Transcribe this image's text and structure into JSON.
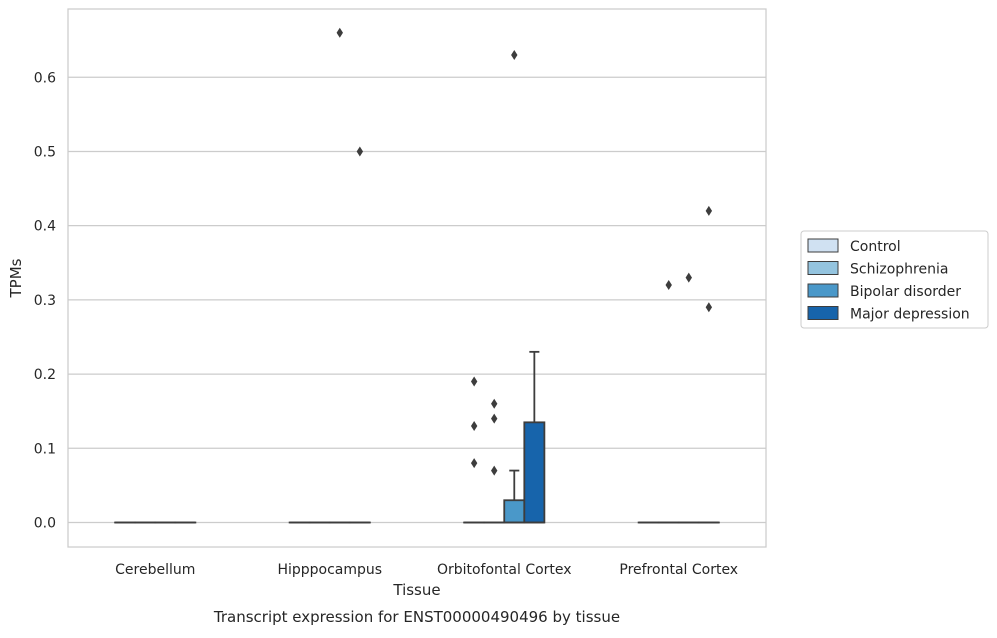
{
  "caption": "Transcript expression for ENST00000490496 by tissue",
  "chart_data": {
    "type": "box",
    "xlabel": "Tissue",
    "ylabel": "TPMs",
    "ylim": [
      -0.033,
      0.692
    ],
    "yticks": [
      0.0,
      0.1,
      0.2,
      0.3,
      0.4,
      0.5,
      0.6
    ],
    "ytick_labels": [
      "0.0",
      "0.1",
      "0.2",
      "0.3",
      "0.4",
      "0.5",
      "0.6"
    ],
    "categories": [
      "Cerebellum",
      "Hipppocampus",
      "Orbitofontal Cortex",
      "Prefrontal Cortex"
    ],
    "grid": "horizontal",
    "legend_position": "right",
    "series": [
      {
        "name": "Control",
        "color": "#d0e1f2",
        "boxes": [
          {
            "q1": 0,
            "median": 0,
            "q3": 0,
            "whisker_low": 0,
            "whisker_high": 0,
            "outliers": []
          },
          {
            "q1": 0,
            "median": 0,
            "q3": 0,
            "whisker_low": 0,
            "whisker_high": 0,
            "outliers": []
          },
          {
            "q1": 0,
            "median": 0,
            "q3": 0,
            "whisker_low": 0,
            "whisker_high": 0,
            "outliers": [
              0.08,
              0.13,
              0.19
            ]
          },
          {
            "q1": 0,
            "median": 0,
            "q3": 0,
            "whisker_low": 0,
            "whisker_high": 0,
            "outliers": []
          }
        ]
      },
      {
        "name": "Schizophrenia",
        "color": "#94c4df",
        "boxes": [
          {
            "q1": 0,
            "median": 0,
            "q3": 0,
            "whisker_low": 0,
            "whisker_high": 0,
            "outliers": []
          },
          {
            "q1": 0,
            "median": 0,
            "q3": 0,
            "whisker_low": 0,
            "whisker_high": 0,
            "outliers": []
          },
          {
            "q1": 0,
            "median": 0,
            "q3": 0,
            "whisker_low": 0,
            "whisker_high": 0,
            "outliers": [
              0.07,
              0.14,
              0.16
            ]
          },
          {
            "q1": 0,
            "median": 0,
            "q3": 0,
            "whisker_low": 0,
            "whisker_high": 0,
            "outliers": [
              0.32
            ]
          }
        ]
      },
      {
        "name": "Bipolar disorder",
        "color": "#4a98c9",
        "boxes": [
          {
            "q1": 0,
            "median": 0,
            "q3": 0,
            "whisker_low": 0,
            "whisker_high": 0,
            "outliers": []
          },
          {
            "q1": 0,
            "median": 0,
            "q3": 0,
            "whisker_low": 0,
            "whisker_high": 0,
            "outliers": [
              0.66
            ]
          },
          {
            "q1": 0,
            "median": 0,
            "q3": 0.03,
            "whisker_low": 0,
            "whisker_high": 0.07,
            "outliers": [
              0.63
            ]
          },
          {
            "q1": 0,
            "median": 0,
            "q3": 0,
            "whisker_low": 0,
            "whisker_high": 0,
            "outliers": [
              0.33
            ]
          }
        ]
      },
      {
        "name": "Major depression",
        "color": "#1764ab",
        "boxes": [
          {
            "q1": 0,
            "median": 0,
            "q3": 0,
            "whisker_low": 0,
            "whisker_high": 0,
            "outliers": []
          },
          {
            "q1": 0,
            "median": 0,
            "q3": 0,
            "whisker_low": 0,
            "whisker_high": 0,
            "outliers": [
              0.5
            ]
          },
          {
            "q1": 0,
            "median": 0,
            "q3": 0.135,
            "whisker_low": 0,
            "whisker_high": 0.23,
            "outliers": []
          },
          {
            "q1": 0,
            "median": 0,
            "q3": 0,
            "whisker_low": 0,
            "whisker_high": 0,
            "outliers": [
              0.29,
              0.42
            ]
          }
        ]
      }
    ]
  }
}
